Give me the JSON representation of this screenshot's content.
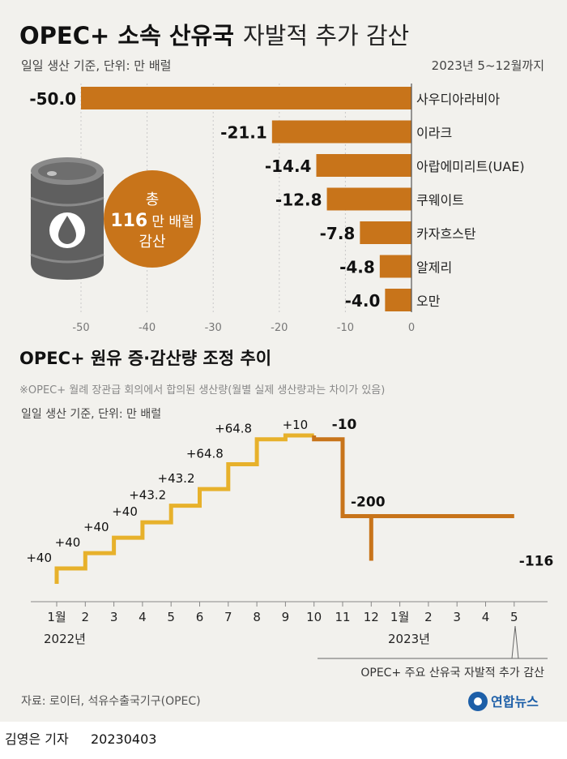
{
  "chart_data": [
    {
      "type": "bar",
      "title_bold": "OPEC+ 소속 산유국",
      "title_light": "자발적 추가 감산",
      "subtitle": "일일 생산 기준, 단위: 만 배럴",
      "period": "2023년 5~12월까지",
      "categories": [
        "사우디아라비아",
        "이라크",
        "아랍에미리트(UAE)",
        "쿠웨이트",
        "카자흐스탄",
        "알제리",
        "오만"
      ],
      "values": [
        -50.0,
        -21.1,
        -14.4,
        -12.8,
        -7.8,
        -4.8,
        -4.0
      ],
      "value_labels": [
        "-50.0",
        "-21.1",
        "-14.4",
        "-12.8",
        "-7.8",
        "-4.8",
        "-4.0"
      ],
      "xlim": [
        -50,
        0
      ],
      "ticks": [
        -50,
        -40,
        -30,
        -20,
        -10,
        0
      ],
      "tick_labels": [
        "-50",
        "-40",
        "-30",
        "-20",
        "-10",
        "0"
      ],
      "grid": true,
      "color": "#c8741a",
      "total_badge": {
        "line1": "총",
        "number": "116",
        "unit": "만 배럴",
        "line3": "감산"
      }
    },
    {
      "type": "line",
      "title": "OPEC+ 원유 증·감산량 조정 추이",
      "note": "※OPEC+ 월례 장관급 회의에서 합의된 생산량(월별 실제 생산량과는 차이가 있음)",
      "subtitle": "일일 생산 기준, 단위: 만 배럴",
      "x": [
        "1월",
        "2",
        "3",
        "4",
        "5",
        "6",
        "7",
        "8",
        "9",
        "10",
        "11",
        "12",
        "1월",
        "2",
        "3",
        "4",
        "5"
      ],
      "year_labels": [
        "2022년",
        "2023년"
      ],
      "step_labels": [
        "+40",
        "+40",
        "+40",
        "+40",
        "+43.2",
        "+43.2",
        "+64.8",
        "+64.8",
        "+10",
        "-10",
        "-200",
        "-116"
      ],
      "step_values": [
        40,
        40,
        40,
        40,
        43.2,
        43.2,
        64.8,
        64.8,
        10,
        -10,
        -200,
        -116
      ],
      "annotation": "OPEC+ 주요 산유국 자발적 추가 감산",
      "colors": {
        "increase": "#e7b12b",
        "decrease": "#c8741a"
      }
    }
  ],
  "footer": {
    "source": "자료: 로이터, 석유수출국기구(OPEC)",
    "brand": "연합뉴스",
    "credit_name": "김영은 기자",
    "credit_date": "20230403"
  }
}
